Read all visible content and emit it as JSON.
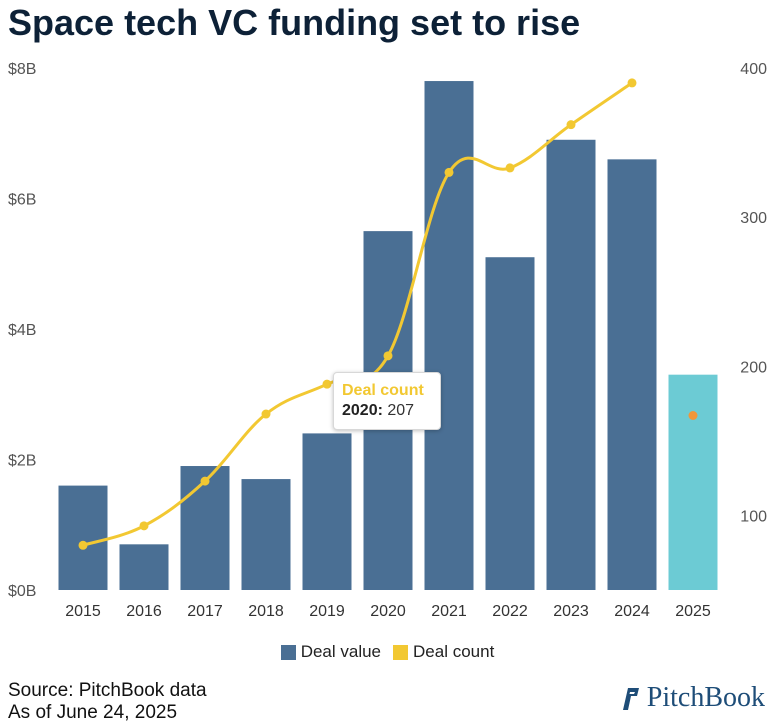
{
  "title": "Space tech VC funding set to rise",
  "chart_data": {
    "type": "bar",
    "categories": [
      "2015",
      "2016",
      "2017",
      "2018",
      "2019",
      "2020",
      "2021",
      "2022",
      "2023",
      "2024",
      "2025"
    ],
    "series": [
      {
        "name": "Deal value",
        "type": "bar",
        "axis": "left",
        "values": [
          1.6,
          0.7,
          1.9,
          1.7,
          2.4,
          5.5,
          7.8,
          5.1,
          6.9,
          6.6,
          3.3
        ]
      },
      {
        "name": "Deal count",
        "type": "line",
        "axis": "right",
        "values": [
          80,
          93,
          123,
          168,
          188,
          207,
          330,
          333,
          362,
          390,
          167
        ]
      }
    ],
    "left_axis": {
      "ticks": [
        "$0B",
        "$2B",
        "$4B",
        "$6B",
        "$8B"
      ],
      "ylim": [
        0,
        8
      ]
    },
    "right_axis": {
      "ticks": [
        "100",
        "200",
        "300",
        "400"
      ],
      "ylim": [
        50,
        400
      ]
    },
    "projected_category": "2025",
    "colors": {
      "bar": "#4a6f94",
      "bar_projected": "#6ccbd4",
      "line": "#f2c832",
      "projected_point": "#f0963a"
    },
    "legend": {
      "placement": "bottom-center"
    },
    "tooltip": {
      "title": "Deal count",
      "year": "2020:",
      "value": "207"
    }
  },
  "footer": {
    "source": "Source: PitchBook data",
    "date": "As of June 24, 2025"
  },
  "brand": "PitchBook"
}
